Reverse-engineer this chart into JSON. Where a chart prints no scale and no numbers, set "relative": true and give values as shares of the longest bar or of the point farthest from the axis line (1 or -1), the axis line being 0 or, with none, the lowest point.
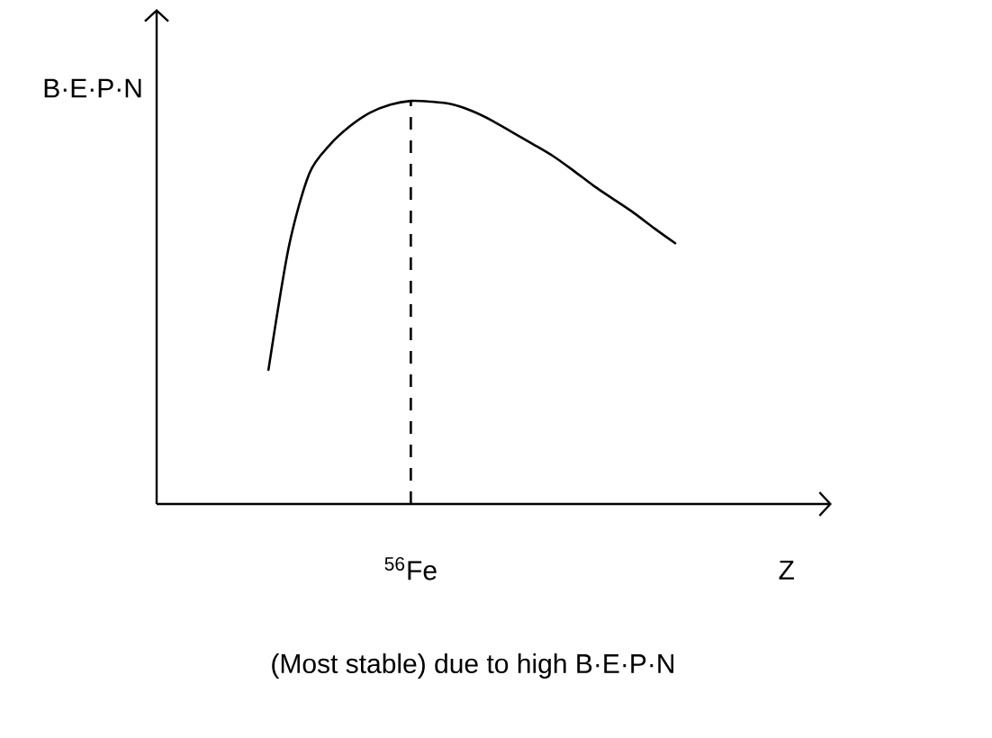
{
  "chart_data": {
    "type": "line",
    "xlabel": "Z",
    "ylabel": "B·E·P·N",
    "relative": true,
    "categories": [
      null,
      null,
      null,
      null,
      null,
      null,
      null,
      null,
      null,
      null,
      null,
      null,
      null,
      null,
      null,
      null,
      null,
      null,
      null,
      null,
      null
    ],
    "series": [
      {
        "color": "#000000",
        "values": [
          0.333,
          0.638,
          0.819,
          0.89,
          0.937,
          0.971,
          0.991,
          1,
          0.998,
          0.992,
          0.975,
          0.951,
          0.922,
          0.893,
          0.863,
          0.827,
          0.789,
          0.755,
          0.721,
          0.683,
          0.647
        ]
      }
    ],
    "annotations": [
      "$^{56}$Fe",
      "(Most stable) due to high B·E·P·N"
    ]
  }
}
